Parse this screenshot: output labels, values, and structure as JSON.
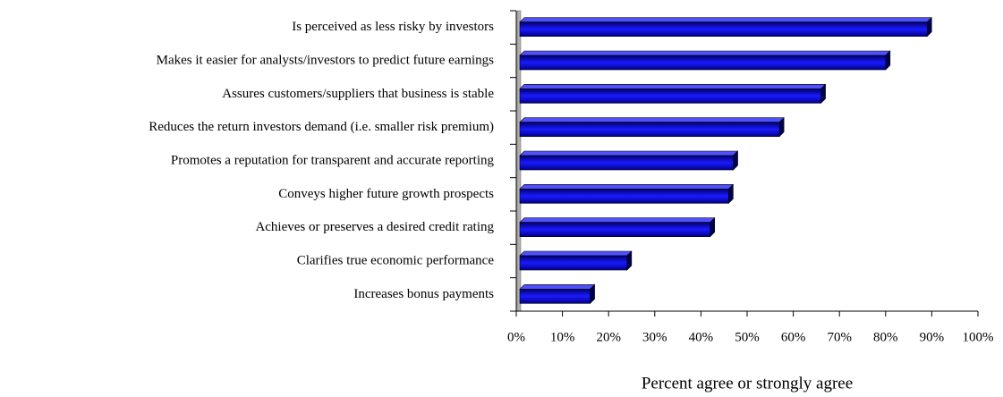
{
  "chart_data": {
    "type": "bar",
    "orientation": "horizontal",
    "categories": [
      "Is perceived as less risky by investors",
      "Makes it easier for analysts/investors to predict future earnings",
      "Assures customers/suppliers that business is stable",
      "Reduces the return investors demand (i.e. smaller risk premium)",
      "Promotes a reputation for transparent and accurate reporting",
      "Conveys higher future growth prospects",
      "Achieves or preserves a desired credit rating",
      "Clarifies true economic performance",
      "Increases bonus payments"
    ],
    "values": [
      89,
      80,
      66,
      57,
      47,
      46,
      42,
      24,
      16
    ],
    "color": "#1a1aff",
    "xlim": [
      0,
      100
    ],
    "xticks": [
      {
        "value": 0,
        "label": "0%"
      },
      {
        "value": 10,
        "label": "10%"
      },
      {
        "value": 20,
        "label": "20%"
      },
      {
        "value": 30,
        "label": "30%"
      },
      {
        "value": 40,
        "label": "40%"
      },
      {
        "value": 50,
        "label": "50%"
      },
      {
        "value": 60,
        "label": "60%"
      },
      {
        "value": 70,
        "label": "70%"
      },
      {
        "value": 80,
        "label": "80%"
      },
      {
        "value": 90,
        "label": "90%"
      },
      {
        "value": 100,
        "label": "100%"
      }
    ],
    "xlabel": "Percent agree or strongly agree"
  }
}
